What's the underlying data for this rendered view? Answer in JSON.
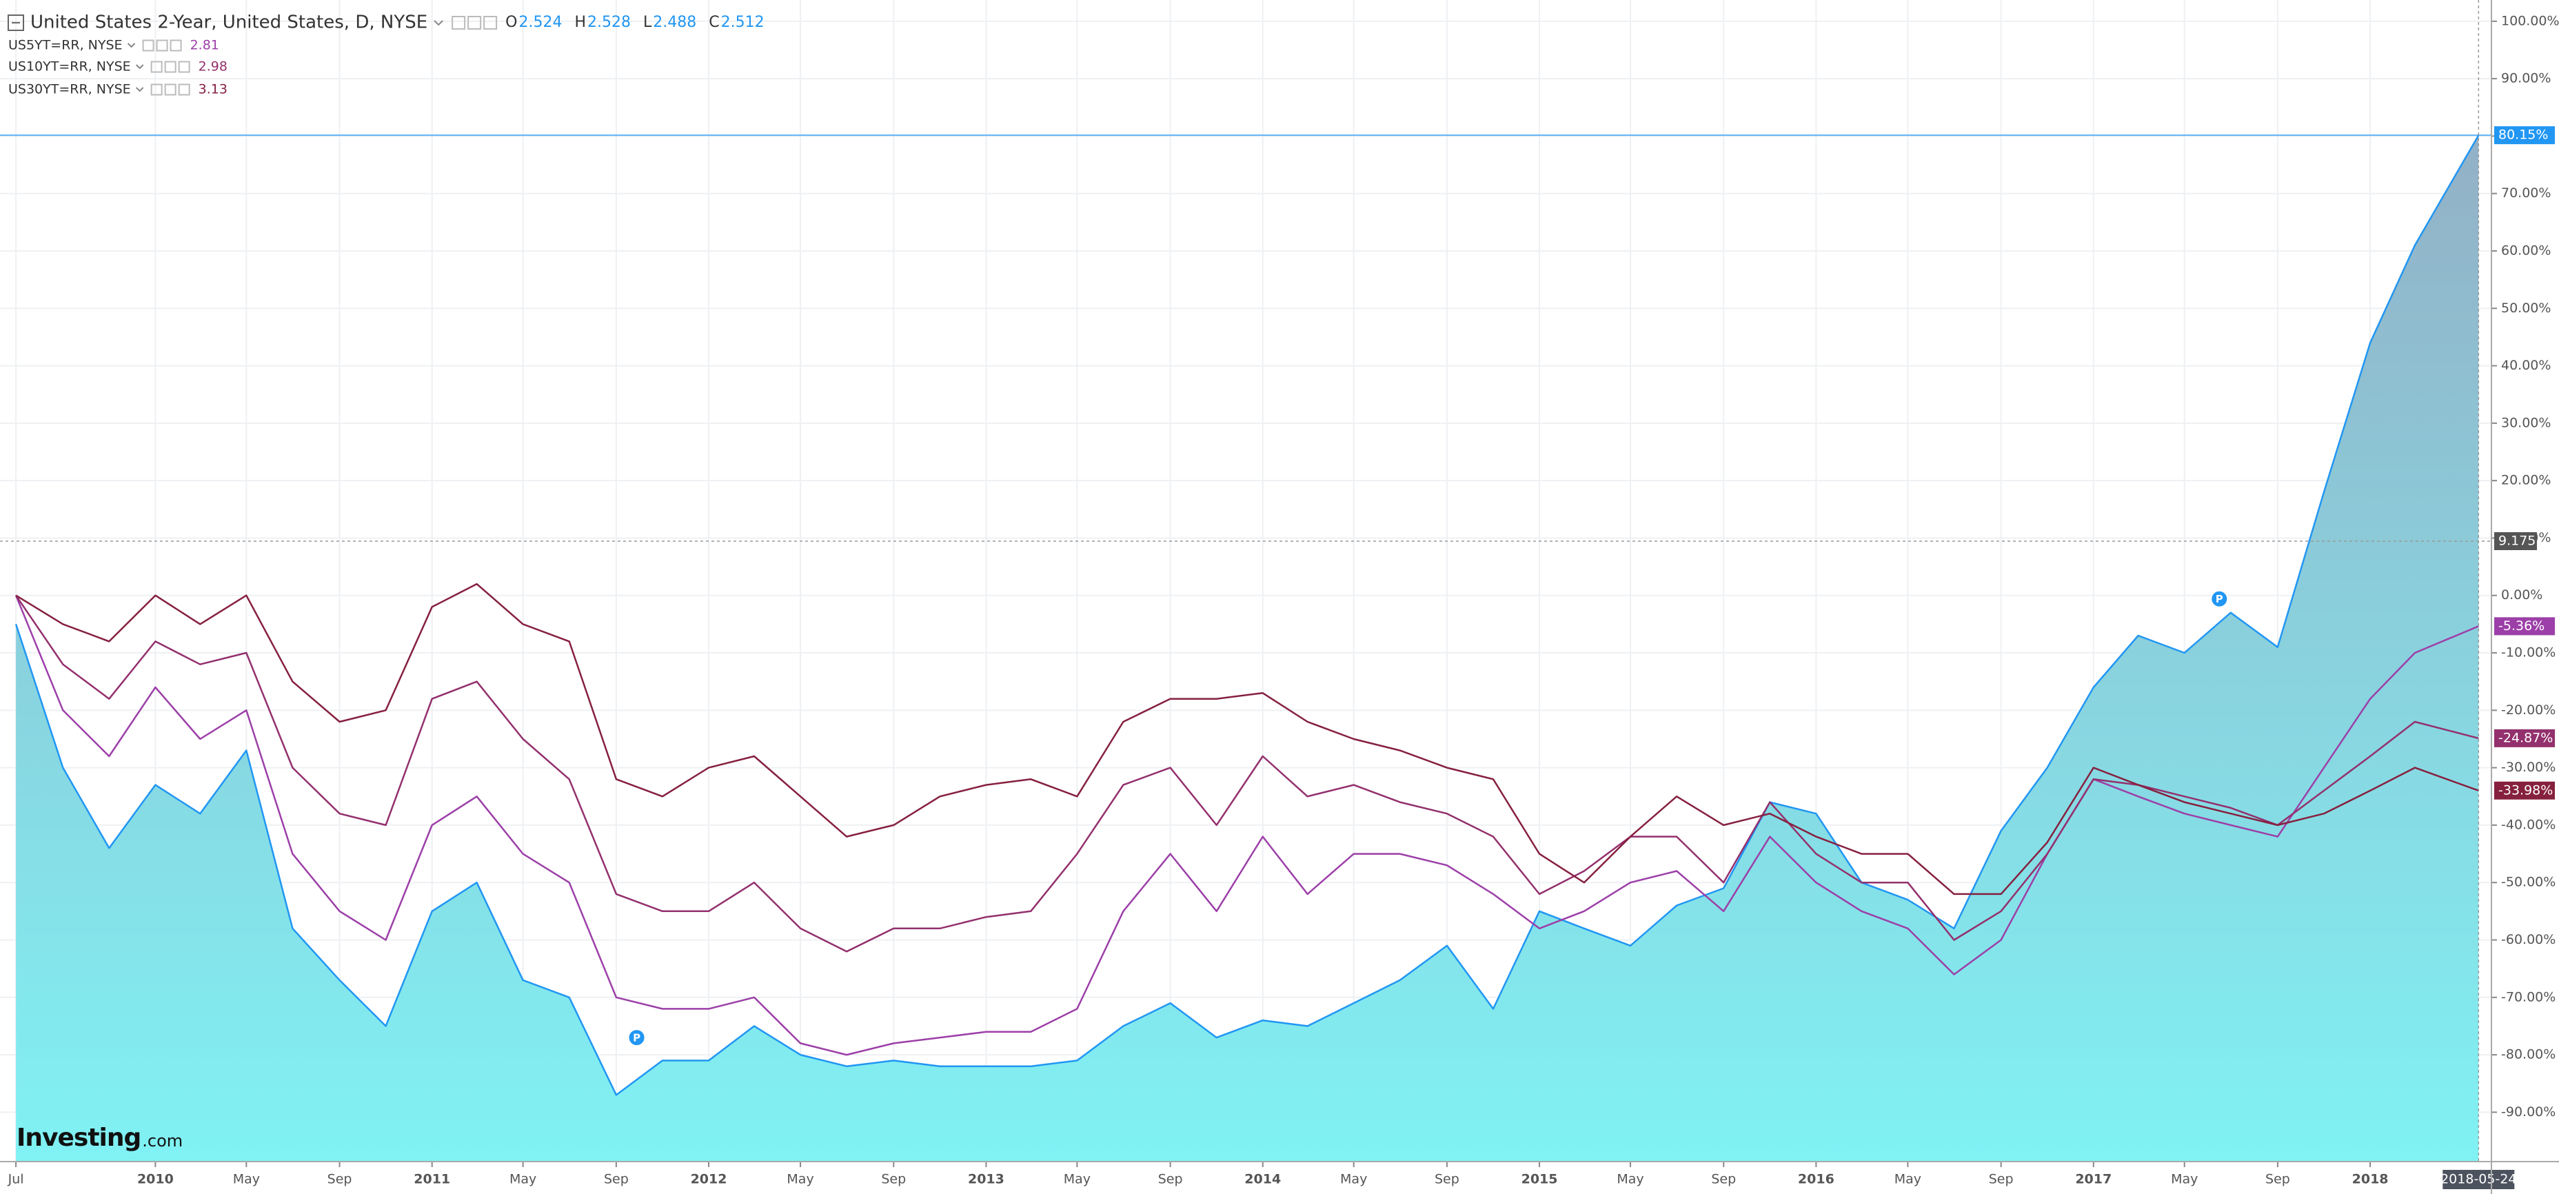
{
  "chart_data": {
    "type": "line",
    "x": [
      "2009-07",
      "2009-09",
      "2009-11",
      "2010-01",
      "2010-03",
      "2010-05",
      "2010-07",
      "2010-09",
      "2010-11",
      "2011-01",
      "2011-03",
      "2011-05",
      "2011-07",
      "2011-09",
      "2011-11",
      "2012-01",
      "2012-03",
      "2012-05",
      "2012-07",
      "2012-09",
      "2012-11",
      "2013-01",
      "2013-03",
      "2013-05",
      "2013-07",
      "2013-09",
      "2013-11",
      "2014-01",
      "2014-03",
      "2014-05",
      "2014-07",
      "2014-09",
      "2014-11",
      "2015-01",
      "2015-03",
      "2015-05",
      "2015-07",
      "2015-09",
      "2015-11",
      "2016-01",
      "2016-03",
      "2016-05",
      "2016-07",
      "2016-09",
      "2016-11",
      "2017-01",
      "2017-03",
      "2017-05",
      "2017-07",
      "2017-09",
      "2017-11",
      "2018-01",
      "2018-03",
      "2018-05-24"
    ],
    "series": [
      {
        "name": "United States 2-Year, United States, D, NYSE",
        "color": "#2196f3",
        "area": true,
        "fill_gradient": [
          "#93b0c6",
          "#80f2f4"
        ],
        "ohlc": [
          {
            "label": "O",
            "value": 2.524
          },
          {
            "label": "H",
            "value": 2.528
          },
          {
            "label": "L",
            "value": 2.488
          },
          {
            "label": "C",
            "value": 2.512
          }
        ],
        "last_label": "80.15%",
        "values": [
          -5,
          -30,
          -44,
          -33,
          -38,
          -27,
          -58,
          -67,
          -75,
          -55,
          -50,
          -67,
          -70,
          -87,
          -81,
          -81,
          -75,
          -80,
          -82,
          -81,
          -82,
          -82,
          -82,
          -81,
          -75,
          -71,
          -77,
          -74,
          -75,
          -71,
          -67,
          -61,
          -72,
          -55,
          -58,
          -61,
          -54,
          -51,
          -36,
          -38,
          -50,
          -53,
          -58,
          -41,
          -30,
          -16,
          -7,
          -10,
          -3,
          -9,
          18,
          44,
          61,
          80.15
        ]
      },
      {
        "name": "US5YT=RR, NYSE",
        "color": "#9c3fa8",
        "quote": 2.81,
        "last_label": "-5.36%",
        "values": [
          0,
          -20,
          -28,
          -16,
          -25,
          -20,
          -45,
          -55,
          -60,
          -40,
          -35,
          -45,
          -50,
          -70,
          -72,
          -72,
          -70,
          -78,
          -80,
          -78,
          -77,
          -76,
          -76,
          -72,
          -55,
          -45,
          -55,
          -42,
          -52,
          -45,
          -45,
          -47,
          -52,
          -58,
          -55,
          -50,
          -48,
          -55,
          -42,
          -50,
          -55,
          -58,
          -66,
          -60,
          -45,
          -32,
          -35,
          -38,
          -40,
          -42,
          -30,
          -18,
          -10,
          -5.36
        ]
      },
      {
        "name": "US10YT=RR, NYSE",
        "color": "#93306d",
        "quote": 2.98,
        "last_label": "-24.87%",
        "values": [
          0,
          -12,
          -18,
          -8,
          -12,
          -10,
          -30,
          -38,
          -40,
          -18,
          -15,
          -25,
          -32,
          -52,
          -55,
          -55,
          -50,
          -58,
          -62,
          -58,
          -58,
          -56,
          -55,
          -45,
          -33,
          -30,
          -40,
          -28,
          -35,
          -33,
          -36,
          -38,
          -42,
          -52,
          -48,
          -42,
          -42,
          -50,
          -36,
          -45,
          -50,
          -50,
          -60,
          -55,
          -45,
          -32,
          -33,
          -35,
          -37,
          -40,
          -34,
          -28,
          -22,
          -24.87
        ]
      },
      {
        "name": "US30YT=RR, NYSE",
        "color": "#86203f",
        "quote": 3.13,
        "last_label": "-33.98%",
        "values": [
          0,
          -5,
          -8,
          0,
          -5,
          0,
          -15,
          -22,
          -20,
          -2,
          2,
          -5,
          -8,
          -32,
          -35,
          -30,
          -28,
          -35,
          -42,
          -40,
          -35,
          -33,
          -32,
          -35,
          -22,
          -18,
          -18,
          -17,
          -22,
          -25,
          -27,
          -30,
          -32,
          -45,
          -50,
          -42,
          -35,
          -40,
          -38,
          -42,
          -45,
          -45,
          -52,
          -52,
          -43,
          -30,
          -33,
          -36,
          -38,
          -40,
          -38,
          -34,
          -30,
          -33.98
        ]
      }
    ],
    "xlim": [
      "2009-06-10",
      "2018-06-10"
    ],
    "xticks": [
      {
        "value": "2009-07",
        "label": "Jul"
      },
      {
        "value": "2010-01",
        "label": "2010"
      },
      {
        "value": "2010-05",
        "label": "May"
      },
      {
        "value": "2010-09",
        "label": "Sep"
      },
      {
        "value": "2011-01",
        "label": "2011"
      },
      {
        "value": "2011-05",
        "label": "May"
      },
      {
        "value": "2011-09",
        "label": "Sep"
      },
      {
        "value": "2012-01",
        "label": "2012"
      },
      {
        "value": "2012-05",
        "label": "May"
      },
      {
        "value": "2012-09",
        "label": "Sep"
      },
      {
        "value": "2013-01",
        "label": "2013"
      },
      {
        "value": "2013-05",
        "label": "May"
      },
      {
        "value": "2013-09",
        "label": "Sep"
      },
      {
        "value": "2014-01",
        "label": "2014"
      },
      {
        "value": "2014-05",
        "label": "May"
      },
      {
        "value": "2014-09",
        "label": "Sep"
      },
      {
        "value": "2015-01",
        "label": "2015"
      },
      {
        "value": "2015-05",
        "label": "May"
      },
      {
        "value": "2015-09",
        "label": "Sep"
      },
      {
        "value": "2016-01",
        "label": "2016"
      },
      {
        "value": "2016-05",
        "label": "May"
      },
      {
        "value": "2016-09",
        "label": "Sep"
      },
      {
        "value": "2017-01",
        "label": "2017"
      },
      {
        "value": "2017-05",
        "label": "May"
      },
      {
        "value": "2017-09",
        "label": "Sep"
      },
      {
        "value": "2018-01",
        "label": "2018"
      }
    ],
    "ylim": [
      -98.6,
      103.7
    ],
    "yticks": [
      {
        "value": -90,
        "label": "-90.00%"
      },
      {
        "value": -80,
        "label": "-80.00%"
      },
      {
        "value": -70,
        "label": "-70.00%"
      },
      {
        "value": -60,
        "label": "-60.00%"
      },
      {
        "value": -50,
        "label": "-50.00%"
      },
      {
        "value": -40,
        "label": "-40.00%"
      },
      {
        "value": -30,
        "label": "-30.00%"
      },
      {
        "value": -20,
        "label": "-20.00%"
      },
      {
        "value": -10,
        "label": "-10.00%"
      },
      {
        "value": 0,
        "label": "0.00%"
      },
      {
        "value": 10,
        "label": "10.00%"
      },
      {
        "value": 20,
        "label": "20.00%"
      },
      {
        "value": 30,
        "label": "30.00%"
      },
      {
        "value": 40,
        "label": "40.00%"
      },
      {
        "value": 50,
        "label": "50.00%"
      },
      {
        "value": 60,
        "label": "60.00%"
      },
      {
        "value": 70,
        "label": "70.00%"
      },
      {
        "value": 80,
        "label": "80.00%"
      },
      {
        "value": 90,
        "label": "90.00%"
      },
      {
        "value": 100,
        "label": "100.00%"
      }
    ],
    "grid": true,
    "markers": [
      {
        "x": "2011-09-28",
        "y": -77,
        "label": "P"
      },
      {
        "x": "2017-06-16",
        "y": -0.6,
        "label": "P"
      }
    ],
    "crosshair": {
      "x": "2018-05-24",
      "y_label": "9.175"
    },
    "logo": [
      "Investing",
      ".com"
    ]
  }
}
